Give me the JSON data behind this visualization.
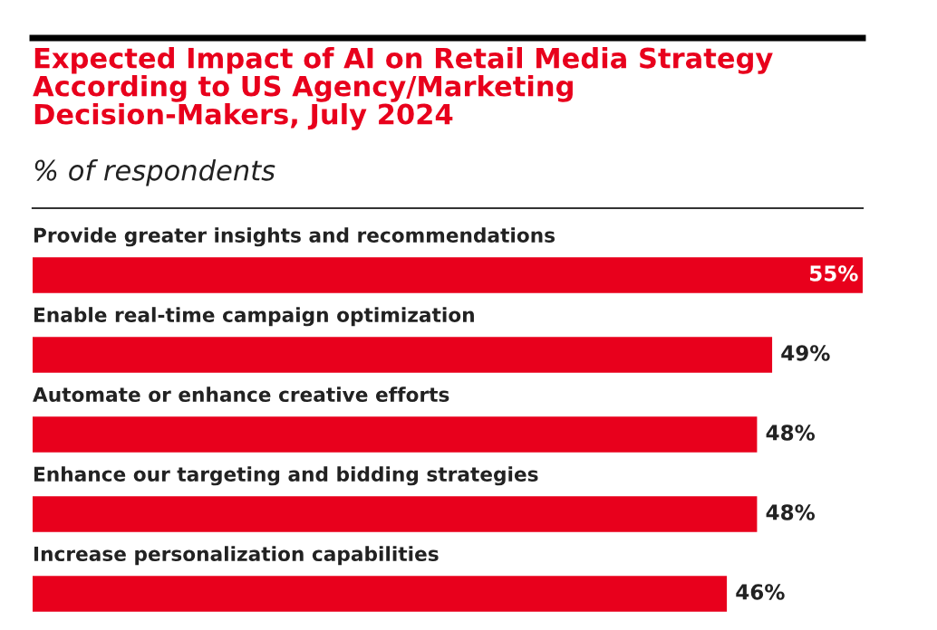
{
  "chart_data": {
    "type": "bar",
    "orientation": "horizontal",
    "title": "Expected Impact of AI on Retail Media Strategy\nAccording to US Agency/Marketing\nDecision-Makers, July 2024",
    "subtitle": "% of respondents",
    "categories": [
      "Provide greater insights and recommendations",
      "Enable real-time campaign optimization",
      "Automate or enhance creative efforts",
      "Enhance our targeting and bidding strategies",
      "Increase personalization capabilities"
    ],
    "values": [
      55,
      49,
      48,
      48,
      46
    ],
    "value_labels": [
      "55%",
      "49%",
      "48%",
      "48%",
      "46%"
    ],
    "color": "#e8001c",
    "xlim": [
      0,
      55
    ]
  }
}
